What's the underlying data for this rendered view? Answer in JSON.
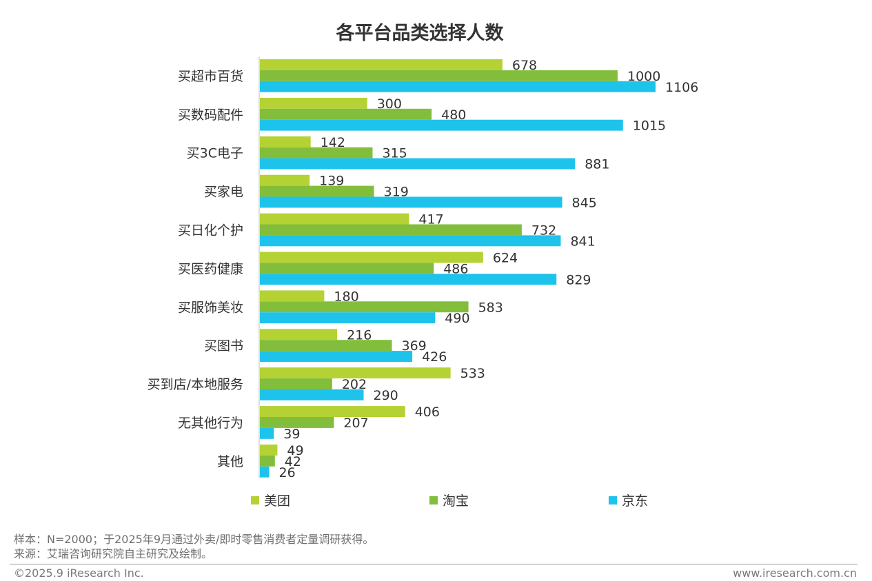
{
  "chart_data": {
    "type": "bar",
    "orientation": "horizontal",
    "title": "各平台品类选择人数",
    "categories": [
      "买超市百货",
      "买数码配件",
      "买3C电子",
      "买家电",
      "买日化个护",
      "买医药健康",
      "买服饰美妆",
      "买图书",
      "买到店/本地服务",
      "无其他行为",
      "其他"
    ],
    "series": [
      {
        "name": "美团",
        "color": "#b4d233",
        "values": [
          678,
          300,
          142,
          139,
          417,
          624,
          180,
          216,
          533,
          406,
          49
        ]
      },
      {
        "name": "淘宝",
        "color": "#82be3c",
        "values": [
          1000,
          480,
          315,
          319,
          732,
          486,
          583,
          369,
          202,
          207,
          42
        ]
      },
      {
        "name": "京东",
        "color": "#1ec3eb",
        "values": [
          1106,
          1015,
          881,
          845,
          841,
          829,
          490,
          426,
          290,
          39,
          26
        ]
      }
    ],
    "xlim": [
      0,
      1200
    ],
    "grid": false,
    "legend_position": "bottom",
    "data_labels": true
  },
  "footer": {
    "sample_note": "样本：N=2000；于2025年9月通过外卖/即时零售消费者定量调研获得。",
    "source_note": "来源：艾瑞咨询研究院自主研究及绘制。",
    "copyright": "©2025.9 iResearch Inc.",
    "website": "www.iresearch.com.cn"
  }
}
